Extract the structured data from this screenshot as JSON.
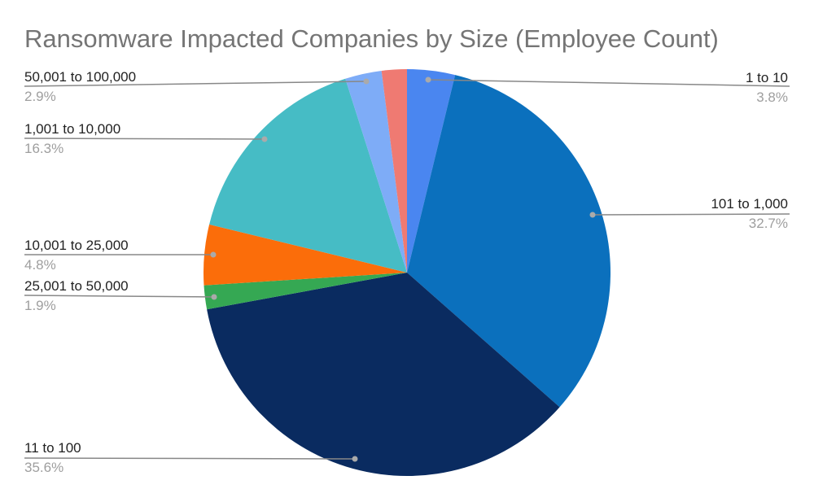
{
  "chart_data": {
    "type": "pie",
    "title": "Ransomware Impacted Companies by Size (Employee Count)",
    "start_angle": "top",
    "direction": "clockwise",
    "slices": [
      {
        "label": "1 to 10",
        "value": 3.8,
        "pct_label": "3.8%",
        "color": "#4a86f0",
        "side": "right"
      },
      {
        "label": "101 to 1,000",
        "value": 32.7,
        "pct_label": "32.7%",
        "color": "#0b70bd",
        "side": "right"
      },
      {
        "label": "11 to 100",
        "value": 35.6,
        "pct_label": "35.6%",
        "color": "#0a2b60",
        "side": "left"
      },
      {
        "label": "25,001 to 50,000",
        "value": 1.9,
        "pct_label": "1.9%",
        "color": "#35a853",
        "side": "left"
      },
      {
        "label": "10,001 to 25,000",
        "value": 4.8,
        "pct_label": "4.8%",
        "color": "#fb6d0a",
        "side": "left"
      },
      {
        "label": "1,001 to 10,000",
        "value": 16.3,
        "pct_label": "16.3%",
        "color": "#46bcc5",
        "side": "left"
      },
      {
        "label": "50,001 to 100,000",
        "value": 2.9,
        "pct_label": "2.9%",
        "color": "#7eacf7",
        "side": "left"
      },
      {
        "label": "",
        "value": 2.0,
        "pct_label": "",
        "color": "#ef7a72",
        "side": "none"
      }
    ],
    "legend": "none"
  }
}
